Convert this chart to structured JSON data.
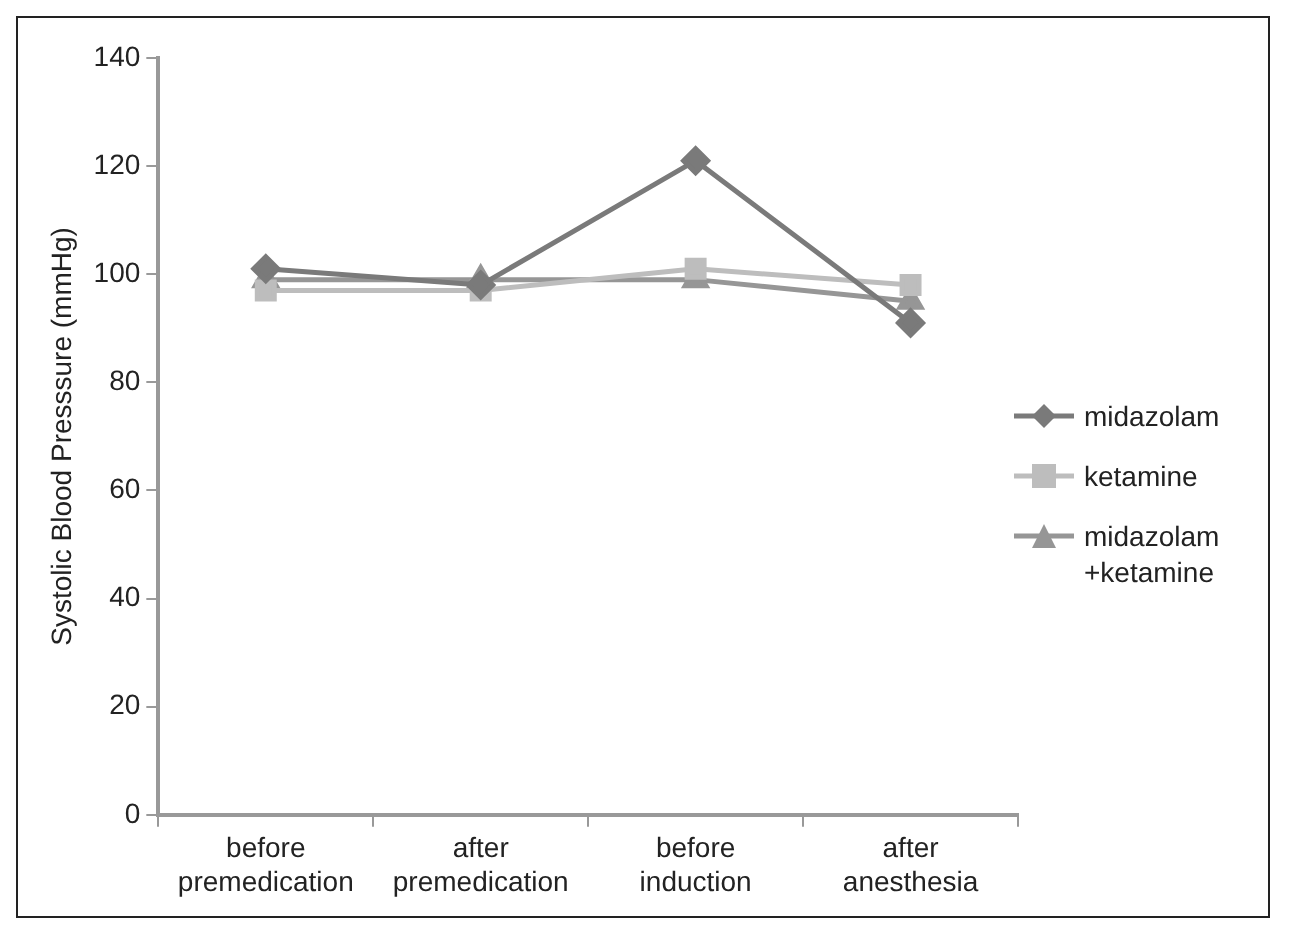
{
  "chart_data": {
    "type": "line",
    "ylabel": "Systolic Blood Presssure (mmHg)",
    "categories": [
      "before premedication",
      "after premedication",
      "before induction",
      "after anesthesia"
    ],
    "series": [
      {
        "name": "midazolam",
        "color": "#7a7a7a",
        "marker": "diamond",
        "values": [
          101,
          98,
          121,
          91
        ]
      },
      {
        "name": "ketamine",
        "color": "#bdbdbd",
        "marker": "square",
        "values": [
          97,
          97,
          101,
          98
        ]
      },
      {
        "name": "midazolam +ketamine",
        "color": "#969696",
        "marker": "triangle",
        "values": [
          99,
          99,
          99,
          95
        ]
      }
    ],
    "ylim": [
      0,
      140
    ],
    "yticks": [
      0,
      20,
      40,
      60,
      80,
      100,
      120,
      140
    ],
    "grid": false,
    "legend": "right"
  }
}
